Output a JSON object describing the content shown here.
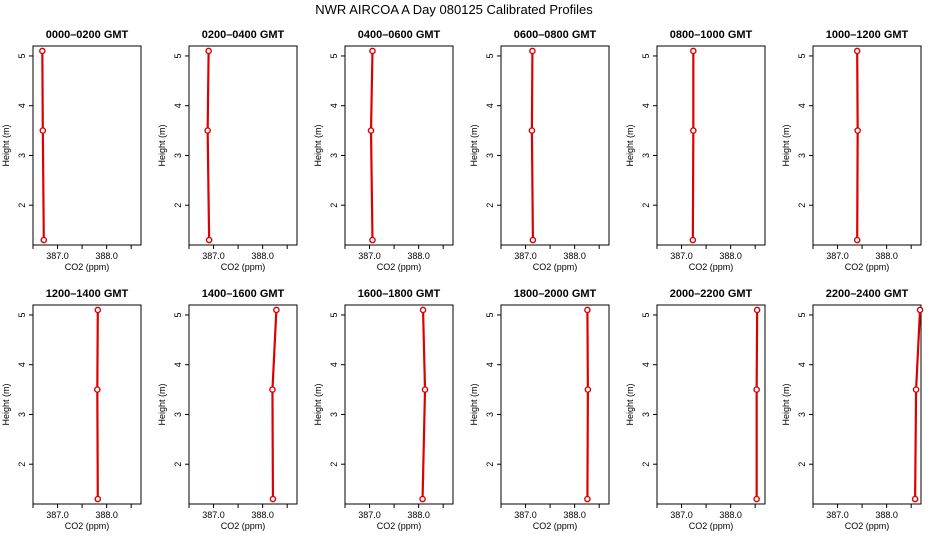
{
  "chart_data": {
    "title": "NWR AIRCOA A  Day 080125  Calibrated Profiles",
    "type": "line",
    "xlabel": "CO2 (ppm)",
    "ylabel": "Height (m)",
    "xlim": [
      386.5,
      388.7
    ],
    "ylim": [
      1.2,
      5.2
    ],
    "x_ticks": [
      387.0,
      388.0
    ],
    "x_tick_labels": [
      "387.0",
      "388.0"
    ],
    "y_ticks": [
      2,
      3,
      4,
      5
    ],
    "y_tick_labels": [
      "2",
      "3",
      "4",
      "5"
    ],
    "heights": [
      1.3,
      3.5,
      5.1
    ],
    "panels": [
      {
        "label": "0000–0200 GMT",
        "co2": [
          386.72,
          386.7,
          386.69
        ]
      },
      {
        "label": "0200–0400 GMT",
        "co2": [
          386.91,
          386.88,
          386.9
        ]
      },
      {
        "label": "0400–0600 GMT",
        "co2": [
          387.06,
          387.03,
          387.06
        ]
      },
      {
        "label": "0600–0800 GMT",
        "co2": [
          387.15,
          387.13,
          387.14
        ]
      },
      {
        "label": "0800–1000 GMT",
        "co2": [
          387.23,
          387.24,
          387.24
        ]
      },
      {
        "label": "1000–1200 GMT",
        "co2": [
          387.4,
          387.41,
          387.4
        ]
      },
      {
        "label": "1200–1400 GMT",
        "co2": [
          387.82,
          387.81,
          387.82
        ]
      },
      {
        "label": "1400–1600 GMT",
        "co2": [
          388.21,
          388.2,
          388.28
        ]
      },
      {
        "label": "1600–1800 GMT",
        "co2": [
          388.08,
          388.13,
          388.09
        ]
      },
      {
        "label": "1800–2000 GMT",
        "co2": [
          388.26,
          388.27,
          388.26
        ]
      },
      {
        "label": "2000–2200 GMT",
        "co2": [
          388.53,
          388.53,
          388.54
        ]
      },
      {
        "label": "2200–2400 GMT",
        "co2": [
          388.58,
          388.6,
          388.68
        ]
      }
    ],
    "colors": {
      "line": "#dd0000",
      "point": "#dd0000",
      "axis": "#000000"
    }
  }
}
